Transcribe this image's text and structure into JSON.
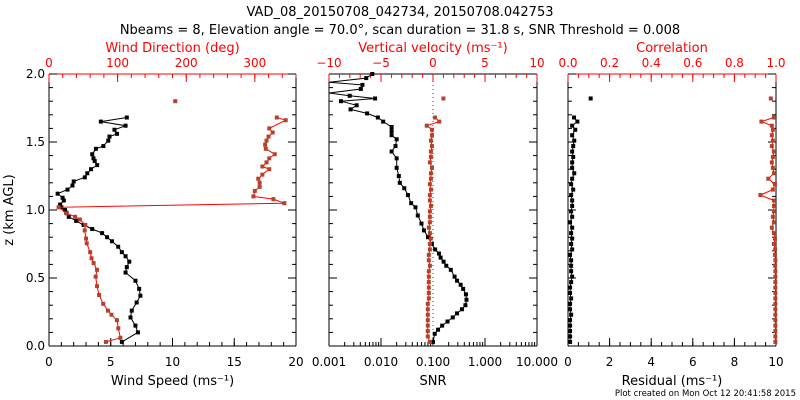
{
  "title_line1": "VAD_08_20150708_042734, 20150708.042753",
  "title_line2": "Nbeams = 8, Elevation angle = 70.0°, scan duration = 31.8 s, SNR Threshold = 0.008",
  "footer": "Plot created on Mon Oct 12 20:41:58 2015",
  "ylabel": "z (km AGL)",
  "colors": {
    "axis_top": "#ff0000",
    "black": "#000000",
    "brown": "#b5412a",
    "red_line": "#ff0000"
  },
  "chart_data": [
    {
      "type": "line",
      "ylabel": "z (km AGL)",
      "ylim": [
        0,
        2
      ],
      "yticks": [
        0,
        0.5,
        1.0,
        1.5,
        2.0
      ],
      "ytick_labels": [
        "0.0",
        "0.5",
        "1.0",
        "1.5",
        "2.0"
      ],
      "x_bottom": {
        "label": "Wind Speed (ms⁻¹)",
        "range": [
          0,
          20
        ],
        "scale": "linear",
        "ticks": [
          0,
          5,
          10,
          15,
          20
        ],
        "tick_labels": [
          "0",
          "5",
          "10",
          "15",
          "20"
        ],
        "minor_step": 1
      },
      "x_top": {
        "label": "Wind Direction (deg)",
        "range": [
          0,
          360
        ],
        "scale": "linear",
        "ticks": [
          0,
          100,
          200,
          300
        ],
        "tick_labels": [
          "0",
          "100",
          "200",
          "300"
        ],
        "minor_step": 20
      },
      "series": [
        {
          "name": "Wind Speed",
          "axis": "bottom",
          "color": "#000000",
          "line_color": "#000000",
          "heights": [
            0.03,
            0.1,
            0.15,
            0.21,
            0.26,
            0.32,
            0.37,
            0.42,
            0.48,
            0.54,
            0.58,
            0.62,
            0.66,
            0.69,
            0.73,
            0.77,
            0.8,
            0.83,
            0.86,
            0.89,
            0.92,
            0.95,
            0.98,
            1.0,
            1.02,
            1.04,
            1.07,
            1.09,
            1.12,
            1.15,
            1.18,
            1.21,
            1.24,
            1.27,
            1.3,
            1.33,
            1.36,
            1.38,
            1.41,
            1.45,
            1.47,
            1.51,
            1.54,
            1.56,
            1.59,
            1.62,
            1.65,
            1.68
          ],
          "values": [
            5.9,
            7.2,
            7.0,
            6.6,
            6.7,
            7.1,
            7.4,
            7.3,
            7.0,
            6.2,
            6.3,
            6.5,
            6.2,
            5.9,
            5.6,
            5.1,
            4.7,
            4.3,
            3.5,
            2.8,
            2.2,
            1.6,
            1.4,
            1.3,
            1.0,
            0.9,
            1.2,
            1.1,
            0.7,
            1.5,
            1.9,
            2.0,
            2.9,
            3.1,
            3.4,
            3.9,
            3.7,
            3.6,
            3.5,
            3.8,
            4.4,
            4.8,
            4.9,
            5.5,
            5.3,
            6.2,
            4.2,
            6.3
          ]
        },
        {
          "name": "Wind Direction",
          "axis": "top",
          "color": "#b5412a",
          "line_color": "#ff0000",
          "heights": [
            0.03,
            0.06,
            0.13,
            0.19,
            0.23,
            0.26,
            0.31,
            0.375,
            0.44,
            0.51,
            0.56,
            0.61,
            0.645,
            0.69,
            0.755,
            0.79,
            0.85,
            0.89,
            0.93,
            0.95,
            0.975,
            1.02,
            1.05,
            1.08,
            1.1,
            1.14,
            1.17,
            1.2,
            1.23,
            1.26,
            1.3,
            1.32,
            1.35,
            1.38,
            1.41,
            1.45,
            1.48,
            1.51,
            1.54,
            1.57,
            1.6,
            1.66,
            1.68,
            1.8
          ],
          "values": [
            83,
            104,
            101,
            99,
            91,
            86,
            79,
            73,
            70,
            68,
            70,
            65,
            62,
            60,
            55,
            54,
            52,
            53,
            45,
            38,
            26,
            14,
            343,
            327,
            298,
            300,
            307,
            307,
            305,
            311,
            321,
            311,
            317,
            321,
            329,
            316,
            315,
            317,
            320,
            326,
            321,
            345,
            332,
            184
          ]
        }
      ]
    },
    {
      "type": "line",
      "ylim": [
        0,
        2
      ],
      "yticks": [
        0,
        0.5,
        1.0,
        1.5,
        2.0
      ],
      "x_bottom": {
        "label": "SNR",
        "range": [
          0.001,
          10
        ],
        "scale": "log",
        "ticks": [
          0.001,
          0.01,
          0.1,
          1,
          10
        ],
        "tick_labels": [
          "0.001",
          "0.010",
          "0.100",
          "1.000",
          "10.000"
        ]
      },
      "x_top": {
        "label": "Vertical velocity (ms⁻¹)",
        "range": [
          -10,
          10
        ],
        "scale": "linear",
        "ticks": [
          -10,
          -5,
          0,
          5,
          10
        ],
        "tick_labels": [
          "−10",
          "−5",
          "0",
          "5",
          "10"
        ],
        "minor_step": 1,
        "reference_line": 0
      },
      "series": [
        {
          "name": "SNR",
          "axis": "bottom",
          "color": "#000000",
          "line_color": "#000000",
          "heights": [
            0.03,
            0.09,
            0.12,
            0.15,
            0.18,
            0.21,
            0.24,
            0.27,
            0.3,
            0.34,
            0.38,
            0.42,
            0.45,
            0.48,
            0.51,
            0.56,
            0.59,
            0.62,
            0.65,
            0.68,
            0.71,
            0.75,
            0.8,
            0.85,
            0.9,
            0.96,
            1.02,
            1.05,
            1.11,
            1.16,
            1.2,
            1.25,
            1.31,
            1.38,
            1.43,
            1.47,
            1.52,
            1.55,
            1.58,
            1.61,
            1.65,
            1.68,
            1.71,
            1.74,
            1.77,
            1.8,
            1.82,
            1.84,
            1.86,
            1.89,
            1.92,
            1.94,
            1.97,
            2.0
          ],
          "values": [
            0.1,
            0.108,
            0.125,
            0.15,
            0.19,
            0.24,
            0.29,
            0.36,
            0.42,
            0.44,
            0.43,
            0.38,
            0.34,
            0.29,
            0.26,
            0.22,
            0.18,
            0.16,
            0.14,
            0.13,
            0.11,
            0.095,
            0.08,
            0.067,
            0.06,
            0.051,
            0.046,
            0.038,
            0.033,
            0.028,
            0.023,
            0.022,
            0.02,
            0.02,
            0.016,
            0.019,
            0.02,
            0.016,
            0.016,
            0.016,
            0.011,
            0.0087,
            0.0054,
            0.0026,
            0.0034,
            0.0017,
            0.0077,
            0.0025,
            0.0008,
            0.0041,
            0.0044,
            0.0008,
            0.0052,
            0.0068
          ]
        },
        {
          "name": "Vertical velocity",
          "axis": "top",
          "color": "#b5412a",
          "line_color": "#ff0000",
          "heights": [
            0.03,
            0.07,
            0.11,
            0.15,
            0.19,
            0.23,
            0.27,
            0.31,
            0.35,
            0.39,
            0.43,
            0.47,
            0.51,
            0.55,
            0.59,
            0.63,
            0.67,
            0.71,
            0.75,
            0.79,
            0.83,
            0.87,
            0.91,
            0.95,
            0.99,
            1.03,
            1.07,
            1.11,
            1.15,
            1.19,
            1.23,
            1.27,
            1.31,
            1.35,
            1.39,
            1.43,
            1.47,
            1.51,
            1.55,
            1.59,
            1.62,
            1.65,
            1.68,
            1.82
          ],
          "values": [
            -0.3,
            -0.5,
            -0.5,
            -0.5,
            -0.5,
            -0.5,
            -0.5,
            -0.5,
            -0.4,
            -0.4,
            -0.4,
            -0.4,
            -0.4,
            -0.4,
            -0.3,
            -0.4,
            -0.4,
            -0.3,
            -0.3,
            -0.2,
            -0.3,
            -0.4,
            -0.3,
            -0.3,
            -0.3,
            -0.2,
            -0.3,
            -0.3,
            -0.2,
            -0.3,
            -0.2,
            -0.2,
            -0.1,
            -0.3,
            -0.2,
            -0.2,
            -0.1,
            -0.2,
            -0.1,
            -0.1,
            -0.6,
            0.6,
            0.2,
            1.0
          ]
        }
      ]
    },
    {
      "type": "line",
      "ylim": [
        0,
        2
      ],
      "yticks": [
        0,
        0.5,
        1.0,
        1.5,
        2.0
      ],
      "x_bottom": {
        "label": "Residual (ms⁻¹)",
        "range": [
          0,
          10
        ],
        "scale": "linear",
        "ticks": [
          0,
          2,
          4,
          6,
          8,
          10
        ],
        "tick_labels": [
          "0",
          "2",
          "4",
          "6",
          "8",
          "10"
        ],
        "minor_step": 0.5
      },
      "x_top": {
        "label": "Correlation",
        "range": [
          0,
          1
        ],
        "scale": "linear",
        "ticks": [
          0,
          0.2,
          0.4,
          0.6,
          0.8,
          1.0
        ],
        "tick_labels": [
          "0.0",
          "0.2",
          "0.4",
          "0.6",
          "0.8",
          "1.0"
        ],
        "minor_step": 0.05
      },
      "series": [
        {
          "name": "Residual",
          "axis": "bottom",
          "color": "#000000",
          "line_color": "#000000",
          "heights": [
            0.03,
            0.07,
            0.11,
            0.15,
            0.19,
            0.23,
            0.27,
            0.31,
            0.35,
            0.39,
            0.43,
            0.47,
            0.51,
            0.55,
            0.59,
            0.63,
            0.67,
            0.71,
            0.75,
            0.79,
            0.83,
            0.87,
            0.91,
            0.95,
            0.99,
            1.03,
            1.07,
            1.11,
            1.15,
            1.19,
            1.23,
            1.27,
            1.31,
            1.35,
            1.39,
            1.43,
            1.47,
            1.51,
            1.55,
            1.59,
            1.62,
            1.65,
            1.68,
            1.82
          ],
          "values": [
            0.1,
            0.1,
            0.1,
            0.1,
            0.1,
            0.15,
            0.1,
            0.1,
            0.15,
            0.1,
            0.1,
            0.15,
            0.2,
            0.15,
            0.15,
            0.15,
            0.1,
            0.2,
            0.15,
            0.2,
            0.15,
            0.2,
            0.1,
            0.2,
            0.15,
            0.2,
            0.2,
            0.15,
            0.25,
            0.15,
            0.2,
            0.3,
            0.2,
            0.2,
            0.25,
            0.2,
            0.25,
            0.3,
            0.2,
            0.35,
            0.2,
            0.45,
            0.29,
            1.09
          ]
        },
        {
          "name": "Correlation",
          "axis": "top",
          "color": "#b5412a",
          "line_color": "#ff0000",
          "heights": [
            0.03,
            0.07,
            0.11,
            0.15,
            0.19,
            0.23,
            0.27,
            0.31,
            0.35,
            0.39,
            0.43,
            0.47,
            0.51,
            0.55,
            0.59,
            0.63,
            0.67,
            0.71,
            0.75,
            0.79,
            0.83,
            0.87,
            0.91,
            0.95,
            0.99,
            1.03,
            1.07,
            1.11,
            1.15,
            1.19,
            1.23,
            1.27,
            1.31,
            1.35,
            1.39,
            1.43,
            1.47,
            1.51,
            1.55,
            1.59,
            1.62,
            1.65,
            1.68,
            1.82
          ],
          "values": [
            0.997,
            0.997,
            0.997,
            0.997,
            0.997,
            0.997,
            0.997,
            0.997,
            0.997,
            0.997,
            0.997,
            0.997,
            0.997,
            0.997,
            0.996,
            0.997,
            0.995,
            0.996,
            0.99,
            0.995,
            0.99,
            0.98,
            0.99,
            0.985,
            0.99,
            0.99,
            0.99,
            0.925,
            0.985,
            0.995,
            0.963,
            0.99,
            0.985,
            0.98,
            0.985,
            0.99,
            0.98,
            0.985,
            0.98,
            0.985,
            0.98,
            0.93,
            0.99,
            0.975
          ]
        }
      ]
    }
  ]
}
